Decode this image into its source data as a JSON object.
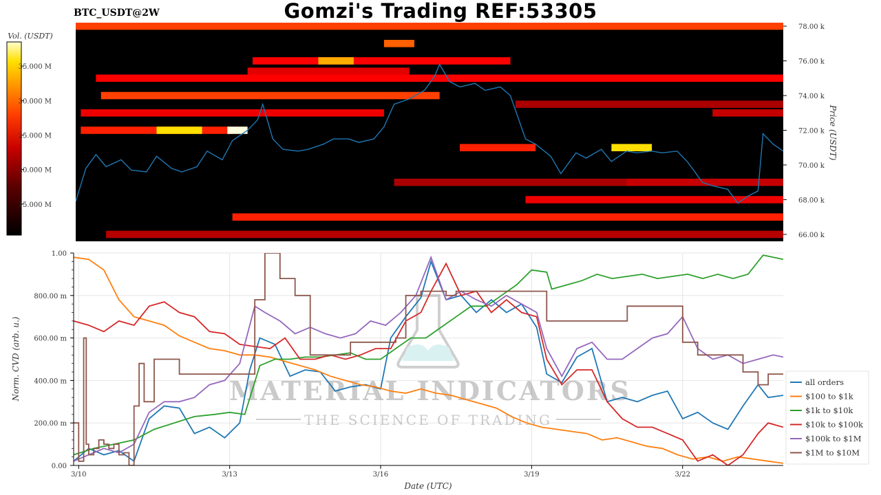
{
  "header": {
    "title": "Gomzi's Trading REF:53305",
    "symbol": "BTC_USDT@2W"
  },
  "colors": {
    "heatmap_background": "#000000",
    "price_line": "#1f77b4",
    "all_orders": "#1f77b4",
    "100_to_1k": "#ff7f0e",
    "1k_to_10k": "#2ca02c",
    "10k_to_100k": "#d62728",
    "100k_to_1M": "#9467bd",
    "1M_to_10M": "#8c564b"
  },
  "watermark": {
    "brand": "MATERIAL INDICATORS",
    "tagline": "THE SCIENCE OF TRADING"
  },
  "chart_data": [
    {
      "type": "heatmap",
      "colorbar": {
        "label": "Vol. (USDT)",
        "ticks": [
          "15.000 M",
          "20.000 M",
          "25.000 M",
          "30.000 M",
          "35.000 M"
        ],
        "tick_values": [
          15,
          20,
          25,
          30,
          35
        ],
        "range": [
          10.5,
          38.5
        ],
        "colormap": "hot"
      },
      "y_axis": {
        "label": "Price (USDT)",
        "ticks": [
          "66.00 k",
          "68.00 k",
          "70.00 k",
          "72.00 k",
          "74.00 k",
          "76.00 k",
          "78.00 k"
        ],
        "tick_values": [
          66,
          68,
          70,
          72,
          74,
          76,
          78
        ],
        "range": [
          65.6,
          78.2
        ],
        "position": "right"
      },
      "x_range_days": [
        9.9,
        23.9
      ],
      "liquidity_bands": [
        {
          "start": 9.9,
          "end": 23.9,
          "price": 78.0,
          "intensity": 0.55
        },
        {
          "start": 16.0,
          "end": 16.6,
          "price": 77.0,
          "intensity": 0.6
        },
        {
          "start": 13.4,
          "end": 18.5,
          "price": 76.0,
          "intensity": 0.45
        },
        {
          "start": 14.7,
          "end": 15.4,
          "price": 76.0,
          "intensity": 0.72
        },
        {
          "start": 13.3,
          "end": 16.5,
          "price": 75.4,
          "intensity": 0.4
        },
        {
          "start": 10.3,
          "end": 23.9,
          "price": 75.0,
          "intensity": 0.45
        },
        {
          "start": 10.4,
          "end": 17.1,
          "price": 74.0,
          "intensity": 0.55
        },
        {
          "start": 10.0,
          "end": 16.0,
          "price": 73.0,
          "intensity": 0.42
        },
        {
          "start": 10.0,
          "end": 13.0,
          "price": 72.0,
          "intensity": 0.5
        },
        {
          "start": 11.5,
          "end": 12.4,
          "price": 72.0,
          "intensity": 0.8
        },
        {
          "start": 12.9,
          "end": 13.3,
          "price": 72.0,
          "intensity": 0.98
        },
        {
          "start": 18.6,
          "end": 23.9,
          "price": 73.5,
          "intensity": 0.3
        },
        {
          "start": 22.5,
          "end": 23.9,
          "price": 73.0,
          "intensity": 0.35
        },
        {
          "start": 17.5,
          "end": 19.0,
          "price": 71.0,
          "intensity": 0.5
        },
        {
          "start": 20.5,
          "end": 21.3,
          "price": 71.0,
          "intensity": 0.8
        },
        {
          "start": 16.2,
          "end": 22.0,
          "price": 69.0,
          "intensity": 0.3
        },
        {
          "start": 20.8,
          "end": 23.9,
          "price": 69.0,
          "intensity": 0.35
        },
        {
          "start": 18.8,
          "end": 23.9,
          "price": 68.0,
          "intensity": 0.42
        },
        {
          "start": 13.0,
          "end": 23.9,
          "price": 67.0,
          "intensity": 0.5
        },
        {
          "start": 10.5,
          "end": 23.9,
          "price": 66.0,
          "intensity": 0.32
        }
      ],
      "price_series": {
        "name": "price",
        "x": [
          9.9,
          10.1,
          10.3,
          10.5,
          10.8,
          11.0,
          11.3,
          11.5,
          11.8,
          12.0,
          12.3,
          12.5,
          12.8,
          13.0,
          13.3,
          13.5,
          13.6,
          13.8,
          14.0,
          14.3,
          14.5,
          14.8,
          15.0,
          15.3,
          15.5,
          15.8,
          16.0,
          16.2,
          16.5,
          16.8,
          17.0,
          17.1,
          17.3,
          17.5,
          17.8,
          18.0,
          18.3,
          18.5,
          18.8,
          19.0,
          19.3,
          19.5,
          19.8,
          20.0,
          20.3,
          20.5,
          20.8,
          21.0,
          21.3,
          21.5,
          21.8,
          22.0,
          22.3,
          22.5,
          22.8,
          23.0,
          23.2,
          23.4,
          23.5,
          23.7,
          23.9
        ],
        "y": [
          67.9,
          69.8,
          70.6,
          69.9,
          70.3,
          69.7,
          69.6,
          70.5,
          69.8,
          69.6,
          69.9,
          70.8,
          70.3,
          71.4,
          72.0,
          72.6,
          73.5,
          71.5,
          70.9,
          70.8,
          70.9,
          71.2,
          71.5,
          71.5,
          71.3,
          71.5,
          72.2,
          73.5,
          73.8,
          74.3,
          75.1,
          75.8,
          74.8,
          74.5,
          74.7,
          74.3,
          74.5,
          74.0,
          71.5,
          71.2,
          70.5,
          69.5,
          70.7,
          70.4,
          70.9,
          70.2,
          70.8,
          70.7,
          70.8,
          70.7,
          70.8,
          70.2,
          69.0,
          68.8,
          68.6,
          67.8,
          68.2,
          68.5,
          71.8,
          71.2,
          70.8
        ]
      }
    },
    {
      "type": "line",
      "xlabel": "Date (UTC)",
      "ylabel": "Norm. CVD (arb. u.)",
      "x_ticks": [
        "3/10",
        "3/13",
        "3/16",
        "3/19",
        "3/22"
      ],
      "x_tick_values": [
        10,
        13,
        16,
        19,
        22
      ],
      "xlim": [
        9.9,
        24.0
      ],
      "y_ticks": [
        "0.00",
        "200.00 m",
        "400.00 m",
        "600.00 m",
        "800.00 m",
        "1.00"
      ],
      "y_tick_values": [
        0,
        0.2,
        0.4,
        0.6,
        0.8,
        1.0
      ],
      "ylim": [
        0,
        1.0
      ],
      "grid": true,
      "legend_position": "right",
      "series": [
        {
          "name": "all orders",
          "x": [
            9.9,
            10.2,
            10.5,
            10.8,
            11.1,
            11.4,
            11.7,
            12.0,
            12.3,
            12.6,
            12.9,
            13.2,
            13.4,
            13.6,
            13.9,
            14.2,
            14.5,
            14.8,
            15.1,
            15.4,
            15.7,
            16.0,
            16.2,
            16.5,
            16.8,
            17.0,
            17.3,
            17.6,
            17.9,
            18.2,
            18.5,
            18.8,
            19.1,
            19.3,
            19.6,
            19.9,
            20.2,
            20.5,
            20.8,
            21.1,
            21.4,
            21.7,
            22.0,
            22.3,
            22.6,
            22.9,
            23.2,
            23.5,
            23.7,
            24.0
          ],
          "y": [
            0.02,
            0.08,
            0.05,
            0.07,
            0.02,
            0.22,
            0.28,
            0.27,
            0.15,
            0.18,
            0.13,
            0.2,
            0.45,
            0.6,
            0.57,
            0.42,
            0.45,
            0.44,
            0.35,
            0.37,
            0.38,
            0.36,
            0.6,
            0.7,
            0.79,
            0.96,
            0.78,
            0.8,
            0.72,
            0.78,
            0.72,
            0.76,
            0.65,
            0.43,
            0.39,
            0.51,
            0.55,
            0.3,
            0.32,
            0.3,
            0.33,
            0.35,
            0.22,
            0.25,
            0.2,
            0.17,
            0.28,
            0.38,
            0.32,
            0.33
          ]
        },
        {
          "name": "$100 to $1k",
          "x": [
            9.9,
            10.2,
            10.5,
            10.8,
            11.1,
            11.4,
            11.7,
            12.0,
            12.3,
            12.6,
            12.9,
            13.2,
            13.5,
            13.8,
            14.1,
            14.4,
            14.7,
            15.0,
            15.3,
            15.6,
            15.9,
            16.2,
            16.5,
            16.8,
            17.1,
            17.4,
            17.7,
            18.0,
            18.3,
            18.6,
            18.9,
            19.2,
            19.5,
            19.8,
            20.1,
            20.4,
            20.7,
            21.0,
            21.3,
            21.6,
            21.9,
            22.2,
            22.5,
            22.8,
            23.1,
            23.4,
            23.7,
            24.0
          ],
          "y": [
            0.98,
            0.97,
            0.92,
            0.78,
            0.7,
            0.68,
            0.66,
            0.61,
            0.58,
            0.55,
            0.54,
            0.52,
            0.52,
            0.51,
            0.49,
            0.47,
            0.45,
            0.42,
            0.4,
            0.38,
            0.37,
            0.35,
            0.34,
            0.36,
            0.34,
            0.33,
            0.31,
            0.29,
            0.27,
            0.23,
            0.2,
            0.18,
            0.17,
            0.16,
            0.15,
            0.12,
            0.13,
            0.11,
            0.09,
            0.08,
            0.05,
            0.03,
            0.04,
            0.02,
            0.04,
            0.03,
            0.02,
            0.01
          ]
        },
        {
          "name": "$1k to $10k",
          "x": [
            9.9,
            10.3,
            10.7,
            11.1,
            11.5,
            11.9,
            12.3,
            12.7,
            13.0,
            13.3,
            13.6,
            13.9,
            14.2,
            14.5,
            14.8,
            15.1,
            15.4,
            15.7,
            16.0,
            16.3,
            16.6,
            16.9,
            17.2,
            17.5,
            17.8,
            18.1,
            18.4,
            18.7,
            19.0,
            19.3,
            19.4,
            19.7,
            20.0,
            20.3,
            20.6,
            20.9,
            21.2,
            21.5,
            21.8,
            22.1,
            22.4,
            22.7,
            23.0,
            23.3,
            23.6,
            24.0
          ],
          "y": [
            0.05,
            0.08,
            0.1,
            0.12,
            0.17,
            0.2,
            0.23,
            0.24,
            0.25,
            0.24,
            0.47,
            0.5,
            0.5,
            0.51,
            0.51,
            0.52,
            0.53,
            0.5,
            0.5,
            0.55,
            0.6,
            0.6,
            0.65,
            0.7,
            0.75,
            0.75,
            0.8,
            0.85,
            0.92,
            0.91,
            0.83,
            0.85,
            0.87,
            0.9,
            0.88,
            0.89,
            0.9,
            0.88,
            0.89,
            0.9,
            0.88,
            0.9,
            0.88,
            0.9,
            0.99,
            0.97
          ]
        },
        {
          "name": "$10k to $100k",
          "x": [
            9.9,
            10.2,
            10.5,
            10.8,
            11.1,
            11.4,
            11.7,
            12.0,
            12.3,
            12.6,
            12.9,
            13.2,
            13.5,
            13.8,
            14.1,
            14.4,
            14.7,
            15.0,
            15.3,
            15.6,
            15.9,
            16.2,
            16.5,
            16.8,
            17.0,
            17.3,
            17.6,
            17.9,
            18.2,
            18.5,
            18.8,
            19.1,
            19.3,
            19.6,
            19.9,
            20.2,
            20.5,
            20.8,
            21.1,
            21.4,
            21.7,
            22.0,
            22.3,
            22.6,
            22.9,
            23.2,
            23.5,
            23.7,
            24.0
          ],
          "y": [
            0.68,
            0.66,
            0.63,
            0.68,
            0.66,
            0.75,
            0.77,
            0.72,
            0.7,
            0.63,
            0.62,
            0.57,
            0.56,
            0.55,
            0.6,
            0.5,
            0.5,
            0.52,
            0.5,
            0.52,
            0.55,
            0.55,
            0.68,
            0.72,
            0.82,
            0.95,
            0.8,
            0.82,
            0.72,
            0.78,
            0.72,
            0.7,
            0.5,
            0.38,
            0.45,
            0.45,
            0.3,
            0.22,
            0.18,
            0.18,
            0.15,
            0.12,
            0.02,
            0.05,
            0.0,
            0.05,
            0.15,
            0.2,
            0.18
          ]
        },
        {
          "name": "$100k to $1M",
          "x": [
            9.9,
            10.2,
            10.5,
            10.8,
            11.1,
            11.4,
            11.7,
            12.0,
            12.3,
            12.6,
            12.9,
            13.2,
            13.5,
            13.7,
            14.0,
            14.3,
            14.6,
            14.9,
            15.2,
            15.5,
            15.8,
            16.1,
            16.4,
            16.7,
            17.0,
            17.3,
            17.6,
            17.9,
            18.2,
            18.5,
            18.8,
            19.1,
            19.3,
            19.6,
            19.9,
            20.2,
            20.5,
            20.8,
            21.1,
            21.4,
            21.7,
            22.0,
            22.3,
            22.6,
            22.9,
            23.2,
            23.5,
            23.8,
            24.0
          ],
          "y": [
            0.02,
            0.05,
            0.08,
            0.06,
            0.1,
            0.25,
            0.3,
            0.3,
            0.32,
            0.38,
            0.4,
            0.48,
            0.75,
            0.72,
            0.68,
            0.62,
            0.65,
            0.62,
            0.6,
            0.62,
            0.68,
            0.66,
            0.72,
            0.8,
            0.98,
            0.78,
            0.82,
            0.78,
            0.75,
            0.8,
            0.76,
            0.72,
            0.55,
            0.42,
            0.55,
            0.58,
            0.5,
            0.5,
            0.55,
            0.6,
            0.62,
            0.7,
            0.55,
            0.5,
            0.52,
            0.48,
            0.5,
            0.52,
            0.51
          ]
        },
        {
          "name": "$1M to $10M",
          "step": true,
          "x": [
            9.9,
            10.0,
            10.1,
            10.15,
            10.2,
            10.3,
            10.4,
            10.5,
            10.6,
            10.7,
            10.8,
            10.9,
            11.0,
            11.05,
            11.1,
            11.2,
            11.3,
            11.5,
            11.6,
            12.0,
            12.3,
            12.6,
            12.9,
            13.2,
            13.4,
            13.5,
            13.7,
            14.0,
            14.3,
            14.6,
            15.0,
            15.4,
            15.8,
            16.1,
            16.3,
            16.5,
            16.8,
            17.0,
            17.1,
            17.3,
            17.5,
            17.8,
            18.0,
            18.3,
            18.6,
            18.9,
            19.3,
            19.7,
            20.0,
            20.3,
            20.6,
            20.9,
            21.2,
            21.5,
            21.8,
            22.0,
            22.3,
            22.6,
            22.9,
            23.2,
            23.5,
            23.7,
            23.9,
            24.0
          ],
          "y": [
            0.2,
            0.02,
            0.6,
            0.1,
            0.05,
            0.08,
            0.12,
            0.1,
            0.08,
            0.1,
            0.05,
            0.06,
            0.0,
            0.0,
            0.28,
            0.48,
            0.3,
            0.5,
            0.5,
            0.43,
            0.43,
            0.43,
            0.43,
            0.43,
            0.43,
            0.78,
            1.0,
            0.88,
            0.8,
            0.52,
            0.52,
            0.58,
            0.58,
            0.58,
            0.6,
            0.8,
            0.82,
            0.82,
            0.82,
            0.8,
            0.82,
            0.82,
            0.82,
            0.82,
            0.82,
            0.82,
            0.68,
            0.68,
            0.68,
            0.68,
            0.68,
            0.75,
            0.75,
            0.75,
            0.75,
            0.58,
            0.52,
            0.52,
            0.52,
            0.44,
            0.38,
            0.43,
            0.43,
            0.43
          ]
        }
      ]
    }
  ]
}
